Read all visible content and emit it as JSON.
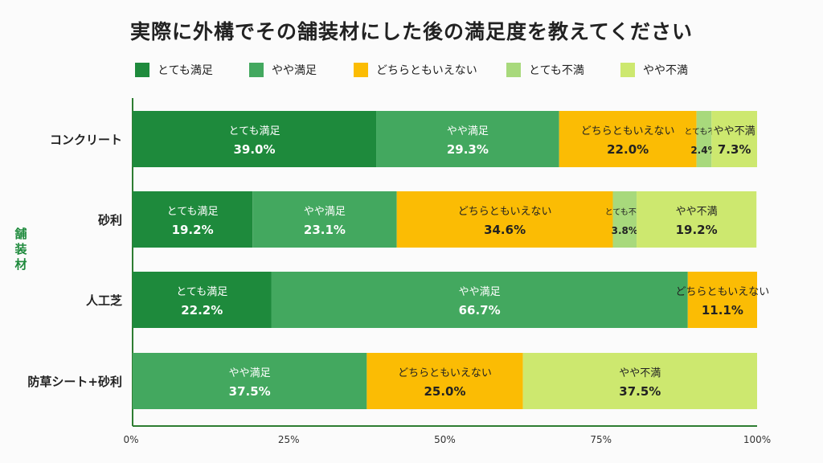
{
  "chart_data": {
    "type": "bar",
    "orientation": "horizontal",
    "stacked": true,
    "title": "実際に外構でその舗装材にした後の満足度を教えてください",
    "ylabel": "舗装材",
    "xlabel": "",
    "xlim": [
      0,
      100
    ],
    "x_ticks": [
      "0%",
      "25%",
      "50%",
      "75%",
      "100%"
    ],
    "legend_position": "top",
    "categories": [
      "コンクリート",
      "砂利",
      "人工芝",
      "防草シート+砂利"
    ],
    "series": [
      {
        "name": "とても満足",
        "color": "#1e8a3c",
        "values": [
          39.0,
          19.2,
          22.2,
          0.0
        ],
        "labels": [
          "39.0%",
          "19.2%",
          "22.2%",
          "0.0%"
        ]
      },
      {
        "name": "やや満足",
        "color": "#43a85f",
        "values": [
          29.3,
          23.1,
          66.7,
          37.5
        ],
        "labels": [
          "29.3%",
          "23.1%",
          "66.7%",
          "37.5%"
        ]
      },
      {
        "name": "どちらともいえない",
        "color": "#fbbc04",
        "values": [
          22.0,
          34.6,
          11.1,
          25.0
        ],
        "labels": [
          "22.0%",
          "34.6%",
          "11.1%",
          "25.0%"
        ]
      },
      {
        "name": "とても不満",
        "color": "#a8d97c",
        "values": [
          2.4,
          3.8,
          0.0,
          0.0
        ],
        "labels": [
          "2.4%",
          "3.8%",
          "",
          "0.0%"
        ]
      },
      {
        "name": "やや不満",
        "color": "#cde86f",
        "values": [
          7.3,
          19.2,
          0.0,
          37.5
        ],
        "labels": [
          "7.3%",
          "19.2%",
          "",
          "37.5%"
        ]
      }
    ]
  }
}
